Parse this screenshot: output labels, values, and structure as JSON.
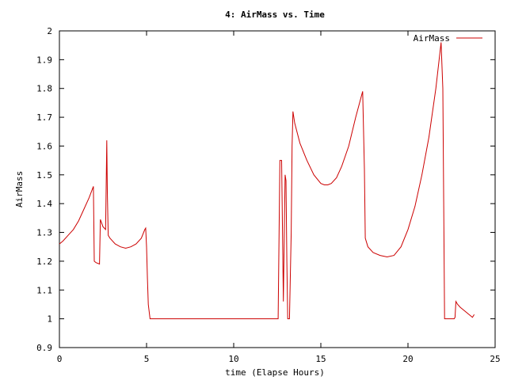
{
  "chart_data": {
    "type": "line",
    "title": "4: AirMass vs. Time",
    "xlabel": "time (Elapse Hours)",
    "ylabel": "AirMass",
    "xlim": [
      0,
      25
    ],
    "ylim": [
      0.9,
      2.0
    ],
    "xticks": [
      0,
      5,
      10,
      15,
      20,
      25
    ],
    "xtick_labels": [
      "0",
      "5",
      "10",
      "15",
      "20",
      "25"
    ],
    "yticks": [
      0.9,
      1.0,
      1.1,
      1.2,
      1.3,
      1.4,
      1.5,
      1.6,
      1.7,
      1.8,
      1.9,
      2.0
    ],
    "ytick_labels": [
      "0.9",
      "1",
      "1.1",
      "1.2",
      "1.3",
      "1.4",
      "1.5",
      "1.6",
      "1.7",
      "1.8",
      "1.9",
      "2"
    ],
    "grid": false,
    "legend": "top-right",
    "series": [
      {
        "name": "AirMass",
        "color": "#cc0000",
        "x": [
          0.0,
          0.2,
          0.5,
          0.8,
          1.1,
          1.4,
          1.7,
          1.95,
          2.0,
          2.1,
          2.3,
          2.35,
          2.5,
          2.65,
          2.72,
          2.75,
          2.8,
          2.9,
          3.2,
          3.5,
          3.8,
          4.1,
          4.4,
          4.7,
          4.9,
          4.95,
          5.0,
          5.05,
          5.1,
          5.2,
          6.0,
          8.0,
          10.0,
          12.0,
          12.55,
          12.65,
          12.75,
          12.85,
          12.95,
          13.0,
          13.05,
          13.1,
          13.15,
          13.2,
          13.3,
          13.35,
          13.4,
          13.5,
          13.8,
          14.2,
          14.6,
          15.0,
          15.2,
          15.4,
          15.6,
          15.9,
          16.2,
          16.6,
          17.0,
          17.4,
          17.5,
          17.55,
          17.7,
          18.0,
          18.4,
          18.8,
          19.2,
          19.6,
          20.0,
          20.4,
          20.8,
          21.2,
          21.6,
          21.9,
          22.0,
          22.1,
          22.4,
          22.65,
          22.7,
          22.75,
          22.85,
          23.0,
          23.2,
          23.4,
          23.6,
          23.7,
          23.8
        ],
        "y": [
          1.26,
          1.27,
          1.29,
          1.31,
          1.34,
          1.38,
          1.42,
          1.46,
          1.2,
          1.195,
          1.19,
          1.345,
          1.32,
          1.31,
          1.62,
          1.44,
          1.29,
          1.28,
          1.26,
          1.25,
          1.245,
          1.25,
          1.26,
          1.28,
          1.31,
          1.315,
          1.25,
          1.14,
          1.05,
          1.0,
          1.0,
          1.0,
          1.0,
          1.0,
          1.0,
          1.55,
          1.55,
          1.06,
          1.5,
          1.48,
          1.2,
          1.0,
          1.0,
          1.0,
          1.3,
          1.6,
          1.72,
          1.68,
          1.61,
          1.55,
          1.5,
          1.47,
          1.465,
          1.465,
          1.47,
          1.49,
          1.53,
          1.6,
          1.7,
          1.79,
          1.52,
          1.28,
          1.25,
          1.23,
          1.22,
          1.215,
          1.22,
          1.25,
          1.31,
          1.39,
          1.5,
          1.63,
          1.8,
          1.96,
          1.8,
          1.0,
          1.0,
          1.0,
          1.005,
          1.06,
          1.05,
          1.04,
          1.03,
          1.02,
          1.01,
          1.005,
          1.015
        ]
      }
    ]
  }
}
